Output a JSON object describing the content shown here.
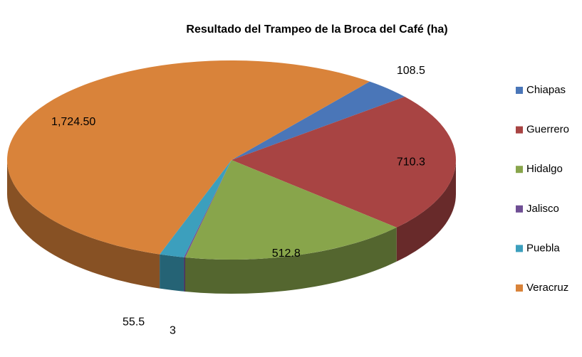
{
  "chart_data": {
    "type": "pie",
    "title": "Resultado del Trampeo de la Broca del Café (ha)",
    "categories": [
      "Chiapas",
      "Guerrero",
      "Hidalgo",
      "Jalisco",
      "Puebla",
      "Veracruz"
    ],
    "values": [
      108.5,
      710.3,
      512.8,
      3,
      55.5,
      1724.5
    ],
    "value_labels": [
      "108.5",
      "710.3",
      "512.8",
      "3",
      "55.5",
      "1,724.50"
    ],
    "colors": [
      "#4a76b8",
      "#a84443",
      "#88a54b",
      "#6f4e94",
      "#3c9fbd",
      "#d9833a"
    ],
    "legend": "right"
  }
}
